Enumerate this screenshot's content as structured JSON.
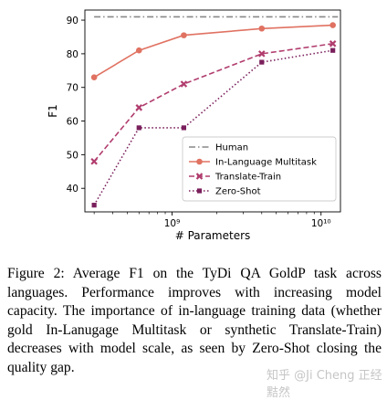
{
  "chart_data": {
    "type": "line",
    "xlabel": "# Parameters",
    "ylabel": "F1",
    "xscale": "log",
    "xlim": [
      260000000.0,
      13500000000.0
    ],
    "ylim": [
      33,
      93
    ],
    "yticks": [
      40,
      50,
      60,
      70,
      80,
      90
    ],
    "xticks": [
      {
        "value": 1000000000.0,
        "label": "10⁹"
      },
      {
        "value": 10000000000.0,
        "label": "10¹⁰"
      }
    ],
    "legend_position": "lower-right",
    "grid": false,
    "series": [
      {
        "name": "Human",
        "style": "dashdot",
        "color": "#888888",
        "marker": "none",
        "x": [
          300000000.0,
          13000000000.0
        ],
        "y": [
          91,
          91
        ]
      },
      {
        "name": "In-Language Multitask",
        "style": "solid",
        "color": "#e07262",
        "marker": "circle",
        "x": [
          300000000.0,
          600000000.0,
          1200000000.0,
          4000000000.0,
          12000000000.0
        ],
        "y": [
          73,
          81,
          85.5,
          87.5,
          88.5
        ]
      },
      {
        "name": "Translate-Train",
        "style": "dashed",
        "color": "#b13d6e",
        "marker": "x",
        "x": [
          300000000.0,
          600000000.0,
          1200000000.0,
          4000000000.0,
          12000000000.0
        ],
        "y": [
          48,
          64,
          71,
          80,
          83
        ]
      },
      {
        "name": "Zero-Shot",
        "style": "dotted",
        "color": "#7a1f5c",
        "marker": "square",
        "x": [
          300000000.0,
          600000000.0,
          1200000000.0,
          4000000000.0,
          12000000000.0
        ],
        "y": [
          35,
          58,
          58,
          77.5,
          81
        ]
      }
    ]
  },
  "caption": {
    "text": "Figure 2: Average F1 on the TyDi QA GoldP task across languages. Performance improves with increasing model capacity. The importance of in-language training data (whether gold In-Lanugage Multitask or synthetic Translate-Train) decreases with model scale, as seen by Zero-Shot closing the quality gap."
  },
  "watermark": "知乎 @Ji Cheng 正经黠然"
}
